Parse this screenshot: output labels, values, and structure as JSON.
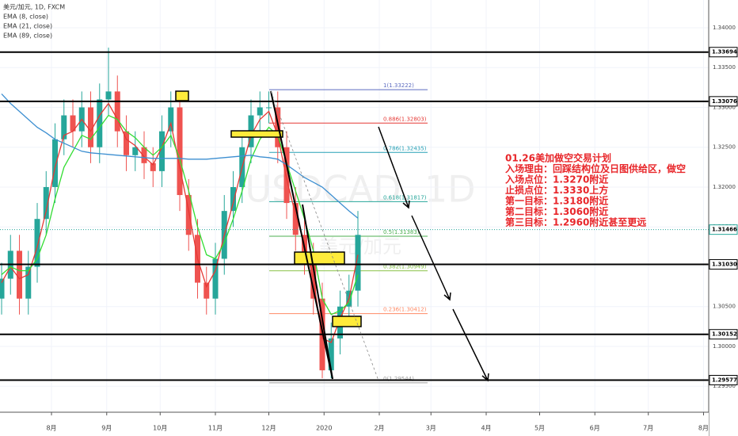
{
  "chart_data": {
    "type": "candlestick",
    "title": "美元/加元, 1D, FXCM",
    "watermark": "USDCAD, 1D",
    "watermark_sub": "美元/加元",
    "xlim": [
      -28.9,
      368.9
    ],
    "ylim": [
      1.29174,
      1.34348
    ],
    "xticks": [
      {
        "value": 0,
        "label": "8月"
      },
      {
        "value": 31,
        "label": "9月"
      },
      {
        "value": 61,
        "label": "10月"
      },
      {
        "value": 92,
        "label": "11月"
      },
      {
        "value": 122,
        "label": "12月"
      },
      {
        "value": 153,
        "label": "2020"
      },
      {
        "value": 184,
        "label": "2月"
      },
      {
        "value": 213,
        "label": "3月"
      },
      {
        "value": 244,
        "label": "4月"
      },
      {
        "value": 274,
        "label": "5月"
      },
      {
        "value": 305,
        "label": "6月"
      },
      {
        "value": 335,
        "label": "7月"
      },
      {
        "value": 366,
        "label": "8月"
      }
    ],
    "yticks": [
      {
        "value": 1.295,
        "label": "1.29500"
      },
      {
        "value": 1.3,
        "label": "1.30000"
      },
      {
        "value": 1.305,
        "label": "1.30500"
      },
      {
        "value": 1.31,
        "label": "1.31000"
      },
      {
        "value": 1.315,
        "label": "1.31500"
      },
      {
        "value": 1.32,
        "label": "1.32000"
      },
      {
        "value": 1.325,
        "label": "1.32500"
      },
      {
        "value": 1.33,
        "label": "1.33000"
      },
      {
        "value": 1.335,
        "label": "1.33500"
      },
      {
        "value": 1.34,
        "label": "1.34000"
      }
    ],
    "x": [
      -28,
      -23,
      -18,
      -13,
      -8,
      -3,
      2,
      7,
      12,
      17,
      22,
      27,
      32,
      37,
      42,
      47,
      52,
      57,
      62,
      67,
      72,
      77,
      82,
      87,
      92,
      97,
      102,
      107,
      112,
      117,
      122,
      127,
      132,
      137,
      142,
      147,
      152,
      157,
      162,
      167,
      172
    ],
    "open": [
      1.306,
      1.3085,
      1.312,
      1.306,
      1.31,
      1.316,
      1.32,
      1.326,
      1.329,
      1.327,
      1.33,
      1.325,
      1.331,
      1.332,
      1.327,
      1.324,
      1.325,
      1.323,
      1.322,
      1.327,
      1.33,
      1.319,
      1.314,
      1.308,
      1.306,
      1.311,
      1.317,
      1.32,
      1.325,
      1.329,
      1.33,
      1.33,
      1.325,
      1.318,
      1.314,
      1.311,
      1.306,
      1.297,
      1.301,
      1.305,
      1.307
    ],
    "high": [
      1.3105,
      1.314,
      1.314,
      1.312,
      1.318,
      1.322,
      1.328,
      1.331,
      1.331,
      1.332,
      1.332,
      1.333,
      1.3375,
      1.334,
      1.329,
      1.327,
      1.327,
      1.325,
      1.329,
      1.332,
      1.332,
      1.321,
      1.316,
      1.31,
      1.313,
      1.319,
      1.322,
      1.327,
      1.331,
      1.332,
      1.332,
      1.332,
      1.327,
      1.32,
      1.316,
      1.313,
      1.308,
      1.303,
      1.307,
      1.309,
      1.317
    ],
    "low": [
      1.304,
      1.3065,
      1.304,
      1.304,
      1.308,
      1.314,
      1.318,
      1.324,
      1.325,
      1.325,
      1.323,
      1.323,
      1.329,
      1.325,
      1.322,
      1.322,
      1.321,
      1.32,
      1.32,
      1.325,
      1.317,
      1.312,
      1.306,
      1.304,
      1.304,
      1.309,
      1.315,
      1.318,
      1.323,
      1.327,
      1.328,
      1.323,
      1.316,
      1.312,
      1.309,
      1.304,
      1.296,
      1.296,
      1.299,
      1.303,
      1.305
    ],
    "close": [
      1.3085,
      1.312,
      1.306,
      1.31,
      1.316,
      1.32,
      1.326,
      1.329,
      1.327,
      1.33,
      1.325,
      1.331,
      1.332,
      1.327,
      1.324,
      1.325,
      1.323,
      1.322,
      1.327,
      1.33,
      1.319,
      1.314,
      1.308,
      1.306,
      1.311,
      1.317,
      1.32,
      1.325,
      1.329,
      1.33,
      1.33,
      1.325,
      1.318,
      1.314,
      1.311,
      1.306,
      1.297,
      1.301,
      1.305,
      1.307,
      1.314
    ],
    "up_color": "#26a69a",
    "down_color": "#ef5350",
    "series": [
      {
        "name": "EMA (8, close)",
        "color": "#e53935",
        "values": [
          1.308,
          1.31,
          1.3085,
          1.309,
          1.3125,
          1.317,
          1.3225,
          1.3265,
          1.327,
          1.3285,
          1.327,
          1.329,
          1.3305,
          1.3285,
          1.326,
          1.3252,
          1.3238,
          1.3228,
          1.325,
          1.328,
          1.3225,
          1.317,
          1.311,
          1.3075,
          1.3095,
          1.314,
          1.318,
          1.3225,
          1.3265,
          1.3285,
          1.3295,
          1.3265,
          1.321,
          1.3165,
          1.313,
          1.3085,
          1.301,
          1.3005,
          1.3035,
          1.306,
          1.3115
        ]
      },
      {
        "name": "EMA (21, close)",
        "color": "#33dd33",
        "values": [
          1.309,
          1.31,
          1.3095,
          1.3095,
          1.311,
          1.314,
          1.3185,
          1.3225,
          1.3245,
          1.3265,
          1.326,
          1.3275,
          1.329,
          1.3285,
          1.327,
          1.3262,
          1.325,
          1.324,
          1.325,
          1.3265,
          1.3235,
          1.3195,
          1.315,
          1.3115,
          1.311,
          1.313,
          1.316,
          1.3195,
          1.3235,
          1.326,
          1.3275,
          1.3265,
          1.323,
          1.3195,
          1.316,
          1.312,
          1.306,
          1.304,
          1.3045,
          1.3055,
          1.309
        ]
      },
      {
        "name": "EMA (89, close)",
        "color": "#3d8fd1",
        "values": [
          1.3317,
          1.3305,
          1.3295,
          1.3285,
          1.3275,
          1.3268,
          1.326,
          1.3255,
          1.325,
          1.3245,
          1.3243,
          1.3242,
          1.3241,
          1.324,
          1.3239,
          1.3238,
          1.3237,
          1.3236,
          1.3236,
          1.3236,
          1.3236,
          1.3235,
          1.3235,
          1.3235,
          1.3236,
          1.3237,
          1.3238,
          1.3239,
          1.324,
          1.3238,
          1.3237,
          1.3235,
          1.3228,
          1.322,
          1.3212,
          1.3206,
          1.32,
          1.319,
          1.318,
          1.317,
          1.3161
        ]
      }
    ],
    "levels": [
      1.33694,
      1.33076,
      {
        "value": 1.3103,
        "label": "1.31030"
      },
      1.30152,
      1.29577
    ],
    "last_price": 1.31466,
    "fib": [
      {
        "value": 1.33222,
        "label": "1(1.33222)",
        "color": "#5c6bc0"
      },
      {
        "value": 1.32803,
        "label": "0.886(1.32803)",
        "color": "#e53935"
      },
      {
        "value": 1.32435,
        "label": "0.786(1.32435)",
        "color": "#26a0b5"
      },
      {
        "value": 1.31817,
        "label": "0.618(1.31817)",
        "color": "#26a69a"
      },
      {
        "value": 1.31383,
        "label": "0.5(1.31383)",
        "color": "#4caf50"
      },
      {
        "value": 1.30949,
        "label": "0.382(1.30949)",
        "color": "#8bc34a"
      },
      {
        "value": 1.30412,
        "label": "0.236(1.30412)",
        "color": "#ff8a65"
      },
      {
        "value": 1.29544,
        "label": "0(1.29544)",
        "color": "#9e9e9e"
      }
    ],
    "annotation": [
      "01.26美加做空交易计划",
      "入场理由：回踩结构位及日图供给区，做空",
      "入场点位：1.3270附近",
      "止损点位：1.3330上方",
      "第一目标：1.3180附近",
      "第二目标：1.3060附近",
      "第三目标：1.2960附近甚至更远"
    ]
  }
}
